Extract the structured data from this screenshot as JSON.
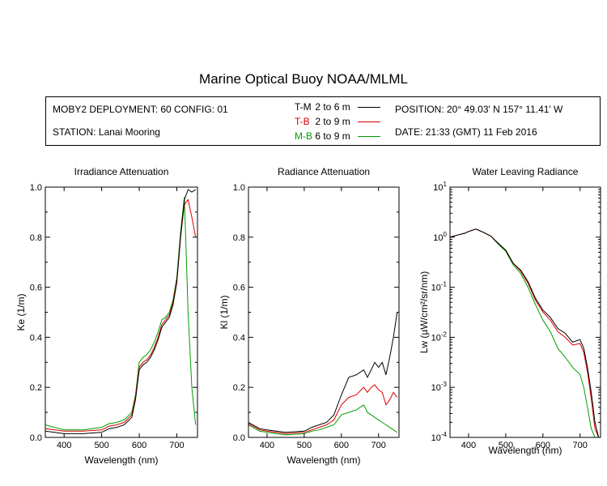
{
  "title": "Marine Optical Buoy NOAA/MLML",
  "info": {
    "deployment": "MOBY2 DEPLOYMENT: 60 CONFIG: 01",
    "station": "STATION: Lanai Mooring",
    "position": "POSITION: 20° 49.03' N   157° 11.41' W",
    "date": "DATE: 21:33 (GMT) 11 Feb 2016"
  },
  "legend": [
    {
      "code": "T-M",
      "range": "2 to 6  m",
      "color": "#000000"
    },
    {
      "code": "T-B",
      "range": "2 to 9  m",
      "color": "#dd0000"
    },
    {
      "code": "M-B",
      "range": "6 to 9  m",
      "color": "#00a000"
    }
  ],
  "chart_data": [
    {
      "type": "line",
      "title": "Irradiance Attenuation",
      "xlabel": "Wavelength (nm)",
      "ylabel": "Ke  (1/m)",
      "xlim": [
        350,
        755
      ],
      "ylim": [
        0,
        1
      ],
      "xticks": [
        "400",
        "500",
        "600",
        "700"
      ],
      "yticks": [
        "0.0",
        "0.2",
        "0.4",
        "0.6",
        "0.8",
        "1.0"
      ],
      "series": [
        {
          "name": "T-M",
          "color": "#000000",
          "x": [
            350,
            400,
            450,
            500,
            520,
            540,
            560,
            580,
            590,
            600,
            610,
            620,
            630,
            640,
            650,
            660,
            670,
            680,
            690,
            700,
            710,
            720,
            730,
            740,
            750
          ],
          "y": [
            0.025,
            0.015,
            0.015,
            0.02,
            0.035,
            0.04,
            0.05,
            0.08,
            0.15,
            0.27,
            0.29,
            0.3,
            0.32,
            0.35,
            0.39,
            0.44,
            0.46,
            0.48,
            0.53,
            0.62,
            0.8,
            0.95,
            0.99,
            0.98,
            0.99
          ]
        },
        {
          "name": "T-B",
          "color": "#dd0000",
          "x": [
            350,
            400,
            450,
            500,
            520,
            540,
            560,
            580,
            590,
            600,
            610,
            620,
            630,
            640,
            650,
            660,
            670,
            680,
            690,
            700,
            710,
            720,
            730,
            740,
            750
          ],
          "y": [
            0.035,
            0.025,
            0.025,
            0.03,
            0.045,
            0.05,
            0.06,
            0.09,
            0.16,
            0.28,
            0.3,
            0.31,
            0.33,
            0.36,
            0.4,
            0.45,
            0.47,
            0.49,
            0.54,
            0.63,
            0.8,
            0.93,
            0.95,
            0.88,
            0.8
          ]
        },
        {
          "name": "M-B",
          "color": "#00a000",
          "x": [
            350,
            400,
            450,
            500,
            520,
            540,
            560,
            580,
            590,
            600,
            610,
            620,
            630,
            640,
            650,
            660,
            670,
            680,
            690,
            700,
            710,
            720,
            730,
            740,
            750
          ],
          "y": [
            0.05,
            0.03,
            0.03,
            0.04,
            0.055,
            0.06,
            0.07,
            0.1,
            0.17,
            0.3,
            0.32,
            0.33,
            0.35,
            0.38,
            0.42,
            0.47,
            0.48,
            0.5,
            0.55,
            0.64,
            0.82,
            0.96,
            0.5,
            0.2,
            0.05
          ]
        }
      ]
    },
    {
      "type": "line",
      "title": "Radiance Attenuation",
      "xlabel": "Wavelength (nm)",
      "ylabel": "Kl  (1/m)",
      "xlim": [
        350,
        755
      ],
      "ylim": [
        0,
        1
      ],
      "xticks": [
        "400",
        "500",
        "600",
        "700"
      ],
      "yticks": [
        "0.0",
        "0.2",
        "0.4",
        "0.6",
        "0.8",
        "1.0"
      ],
      "series": [
        {
          "name": "T-M",
          "color": "#000000",
          "x": [
            350,
            380,
            400,
            450,
            500,
            520,
            540,
            560,
            580,
            600,
            620,
            640,
            660,
            670,
            680,
            690,
            700,
            710,
            720,
            730,
            740,
            750
          ],
          "y": [
            0.06,
            0.035,
            0.03,
            0.02,
            0.025,
            0.04,
            0.05,
            0.06,
            0.09,
            0.17,
            0.24,
            0.25,
            0.27,
            0.24,
            0.27,
            0.3,
            0.28,
            0.3,
            0.25,
            0.32,
            0.4,
            0.5
          ]
        },
        {
          "name": "T-B",
          "color": "#dd0000",
          "x": [
            350,
            380,
            400,
            450,
            500,
            520,
            540,
            560,
            580,
            600,
            620,
            640,
            660,
            670,
            680,
            690,
            700,
            710,
            720,
            730,
            740,
            750
          ],
          "y": [
            0.055,
            0.03,
            0.025,
            0.015,
            0.02,
            0.03,
            0.04,
            0.05,
            0.07,
            0.13,
            0.16,
            0.17,
            0.2,
            0.18,
            0.2,
            0.21,
            0.19,
            0.18,
            0.13,
            0.15,
            0.18,
            0.16
          ]
        },
        {
          "name": "M-B",
          "color": "#00a000",
          "x": [
            350,
            380,
            400,
            450,
            500,
            520,
            540,
            560,
            580,
            600,
            620,
            640,
            660,
            670,
            680,
            690,
            700,
            710,
            720,
            730,
            740,
            750
          ],
          "y": [
            0.05,
            0.025,
            0.02,
            0.01,
            0.015,
            0.025,
            0.03,
            0.04,
            0.05,
            0.09,
            0.1,
            0.11,
            0.13,
            0.1,
            0.09,
            0.08,
            0.07,
            0.06,
            0.05,
            0.04,
            0.03,
            0.02
          ]
        }
      ]
    },
    {
      "type": "line",
      "title": "Water Leaving Radiance",
      "xlabel": "Wavelength (nm)",
      "ylabel": "Lw  (µW/cm²/sr/nm)",
      "xlim": [
        350,
        755
      ],
      "ylim": [
        0.0001,
        10
      ],
      "yscale": "log",
      "xticks": [
        "400",
        "500",
        "600",
        "700"
      ],
      "yticks": [
        "10^-4",
        "10^-3",
        "10^-2",
        "10^-1",
        "10^0",
        "10^1"
      ],
      "series": [
        {
          "name": "T-M",
          "color": "#000000",
          "x": [
            350,
            370,
            390,
            400,
            420,
            440,
            460,
            480,
            500,
            520,
            540,
            560,
            580,
            600,
            620,
            640,
            660,
            680,
            700,
            710,
            720,
            730,
            740,
            750
          ],
          "y": [
            1.0,
            1.1,
            1.2,
            1.3,
            1.45,
            1.25,
            1.05,
            0.75,
            0.55,
            0.3,
            0.22,
            0.13,
            0.06,
            0.035,
            0.025,
            0.015,
            0.012,
            0.008,
            0.009,
            0.006,
            0.0025,
            0.0008,
            0.0002,
            0.0001
          ]
        },
        {
          "name": "T-B",
          "color": "#dd0000",
          "x": [
            350,
            370,
            390,
            400,
            420,
            440,
            460,
            480,
            500,
            520,
            540,
            560,
            580,
            600,
            620,
            640,
            660,
            680,
            700,
            710,
            720,
            730,
            740,
            750
          ],
          "y": [
            1.0,
            1.1,
            1.2,
            1.3,
            1.45,
            1.25,
            1.05,
            0.75,
            0.55,
            0.3,
            0.21,
            0.12,
            0.055,
            0.032,
            0.022,
            0.013,
            0.01,
            0.007,
            0.0075,
            0.005,
            0.002,
            0.0006,
            0.00015,
            0.0001
          ]
        },
        {
          "name": "M-B",
          "color": "#00a000",
          "x": [
            350,
            370,
            390,
            400,
            420,
            440,
            460,
            480,
            500,
            520,
            540,
            560,
            580,
            600,
            620,
            640,
            660,
            680,
            700,
            710,
            720,
            730,
            740
          ],
          "y": [
            1.0,
            1.1,
            1.2,
            1.3,
            1.45,
            1.25,
            1.05,
            0.72,
            0.52,
            0.28,
            0.19,
            0.1,
            0.045,
            0.022,
            0.013,
            0.006,
            0.004,
            0.0025,
            0.0018,
            0.001,
            0.0004,
            0.00015,
            0.0001
          ]
        }
      ]
    }
  ]
}
